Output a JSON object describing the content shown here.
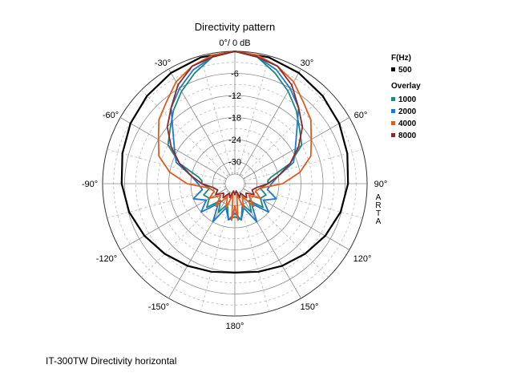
{
  "chart_data": {
    "type": "polar",
    "title": "Directivity pattern",
    "reference_label": "0°/ 0 dB",
    "radial_ticks": [
      "-6",
      "-12",
      "-18",
      "-24",
      "-30"
    ],
    "radial_range_db": [
      -36,
      0
    ],
    "angle_labels": [
      "-30°",
      "30°",
      "-60°",
      "60°",
      "-90°",
      "90°",
      "-120°",
      "120°",
      "-150°",
      "150°",
      "180°"
    ],
    "legend": {
      "header": "F(Hz)",
      "overlay_header": "Overlay"
    },
    "side_text": [
      "A",
      "R",
      "T",
      "A"
    ],
    "series": [
      {
        "name": "500",
        "color": "#000000",
        "points": [
          [
            0,
            0
          ],
          [
            15,
            -0.4
          ],
          [
            30,
            -1.2
          ],
          [
            45,
            -2.2
          ],
          [
            60,
            -3.2
          ],
          [
            75,
            -4.3
          ],
          [
            90,
            -5.2
          ],
          [
            105,
            -6.2
          ],
          [
            120,
            -7.6
          ],
          [
            135,
            -9.0
          ],
          [
            150,
            -10.2
          ],
          [
            165,
            -11.2
          ],
          [
            180,
            -11.8
          ]
        ]
      },
      {
        "name": "1000",
        "color": "#1a8a80",
        "points": [
          [
            0,
            0
          ],
          [
            10,
            -1
          ],
          [
            20,
            -4
          ],
          [
            30,
            -7
          ],
          [
            40,
            -10
          ],
          [
            50,
            -13
          ],
          [
            60,
            -15
          ],
          [
            70,
            -20
          ],
          [
            80,
            -26
          ],
          [
            85,
            -27
          ],
          [
            90,
            -27
          ],
          [
            100,
            -29
          ],
          [
            110,
            -27
          ],
          [
            120,
            -28
          ],
          [
            130,
            -26
          ],
          [
            140,
            -30
          ],
          [
            150,
            -27
          ],
          [
            160,
            -30
          ],
          [
            170,
            -26
          ],
          [
            180,
            -27
          ]
        ]
      },
      {
        "name": "2000",
        "color": "#1e78d0",
        "points": [
          [
            0,
            0
          ],
          [
            10,
            -1
          ],
          [
            20,
            -3
          ],
          [
            30,
            -6
          ],
          [
            40,
            -9
          ],
          [
            50,
            -14
          ],
          [
            60,
            -17
          ],
          [
            70,
            -19
          ],
          [
            80,
            -24
          ],
          [
            90,
            -26
          ],
          [
            100,
            -27
          ],
          [
            110,
            -24
          ],
          [
            120,
            -27
          ],
          [
            130,
            -24
          ],
          [
            140,
            -29
          ],
          [
            150,
            -24
          ],
          [
            160,
            -29
          ],
          [
            170,
            -26
          ],
          [
            180,
            -28
          ]
        ]
      },
      {
        "name": "4000",
        "color": "#e35a1e",
        "points": [
          [
            0,
            0
          ],
          [
            10,
            -0.5
          ],
          [
            20,
            -2
          ],
          [
            30,
            -4
          ],
          [
            40,
            -7
          ],
          [
            50,
            -9
          ],
          [
            60,
            -12
          ],
          [
            70,
            -14
          ],
          [
            80,
            -18
          ],
          [
            90,
            -23
          ],
          [
            100,
            -29
          ],
          [
            110,
            -30
          ],
          [
            120,
            -28
          ],
          [
            130,
            -31
          ],
          [
            140,
            -28
          ],
          [
            150,
            -32
          ],
          [
            160,
            -29
          ],
          [
            170,
            -33
          ],
          [
            175,
            -26
          ],
          [
            180,
            -30
          ]
        ]
      },
      {
        "name": "8000",
        "color": "#8c2a2a",
        "points": [
          [
            0,
            0
          ],
          [
            10,
            -1
          ],
          [
            20,
            -2
          ],
          [
            30,
            -5
          ],
          [
            40,
            -9
          ],
          [
            50,
            -12
          ],
          [
            60,
            -16
          ],
          [
            70,
            -20
          ],
          [
            80,
            -24
          ],
          [
            90,
            -27
          ],
          [
            100,
            -30
          ],
          [
            110,
            -31
          ],
          [
            120,
            -30
          ],
          [
            130,
            -32
          ],
          [
            140,
            -31
          ],
          [
            150,
            -33
          ],
          [
            160,
            -32
          ],
          [
            170,
            -34
          ],
          [
            180,
            -33
          ]
        ]
      }
    ]
  },
  "caption": "IT-300TW Directivity horizontal"
}
